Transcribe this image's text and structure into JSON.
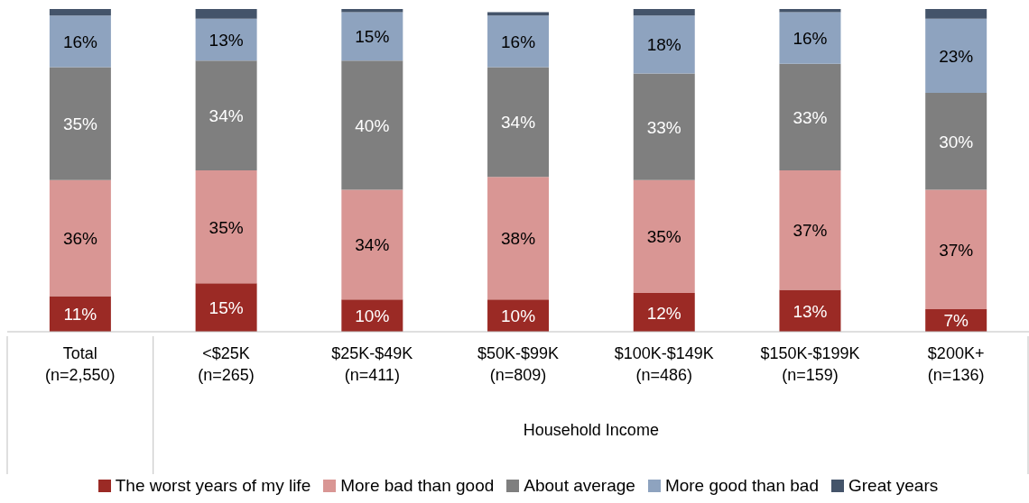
{
  "chart_data": {
    "type": "bar",
    "stacked": true,
    "categories": [
      "Total\n(n=2,550)",
      "<$25K\n(n=265)",
      "$25K-$49K\n(n=411)",
      "$50K-$99K\n(n=809)",
      "$100K-$149K\n(n=486)",
      "$150K-$199K\n(n=159)",
      "$200K+\n(n=136)"
    ],
    "xlabel": "Household Income",
    "ylim": [
      0,
      100
    ],
    "tick_labels": "x",
    "legend": "bottom",
    "series": [
      {
        "name": "The worst years of my life",
        "color": "#9b2a25",
        "values": [
          11,
          15,
          10,
          10,
          12,
          13,
          7
        ],
        "value_labels": [
          "11%",
          "15%",
          "10%",
          "10%",
          "12%",
          "13%",
          "7%"
        ]
      },
      {
        "name": "More bad than good",
        "color": "#d99694",
        "values": [
          36,
          35,
          34,
          38,
          35,
          37,
          37
        ],
        "value_labels": [
          "36%",
          "35%",
          "34%",
          "38%",
          "35%",
          "37%",
          "37%"
        ]
      },
      {
        "name": "About average",
        "color": "#7f7f7f",
        "values": [
          35,
          34,
          40,
          34,
          33,
          33,
          30
        ],
        "value_labels": [
          "35%",
          "34%",
          "40%",
          "34%",
          "33%",
          "33%",
          "30%"
        ]
      },
      {
        "name": "More good than bad",
        "color": "#8ea3bf",
        "values": [
          16,
          13,
          15,
          16,
          18,
          16,
          23
        ],
        "value_labels": [
          "16%",
          "13%",
          "15%",
          "16%",
          "18%",
          "16%",
          "23%"
        ]
      },
      {
        "name": "Great years",
        "color": "#44546a",
        "values": [
          2,
          3,
          1,
          1,
          2,
          1,
          3
        ],
        "value_labels": [
          null,
          null,
          null,
          null,
          null,
          null,
          null
        ]
      }
    ]
  }
}
